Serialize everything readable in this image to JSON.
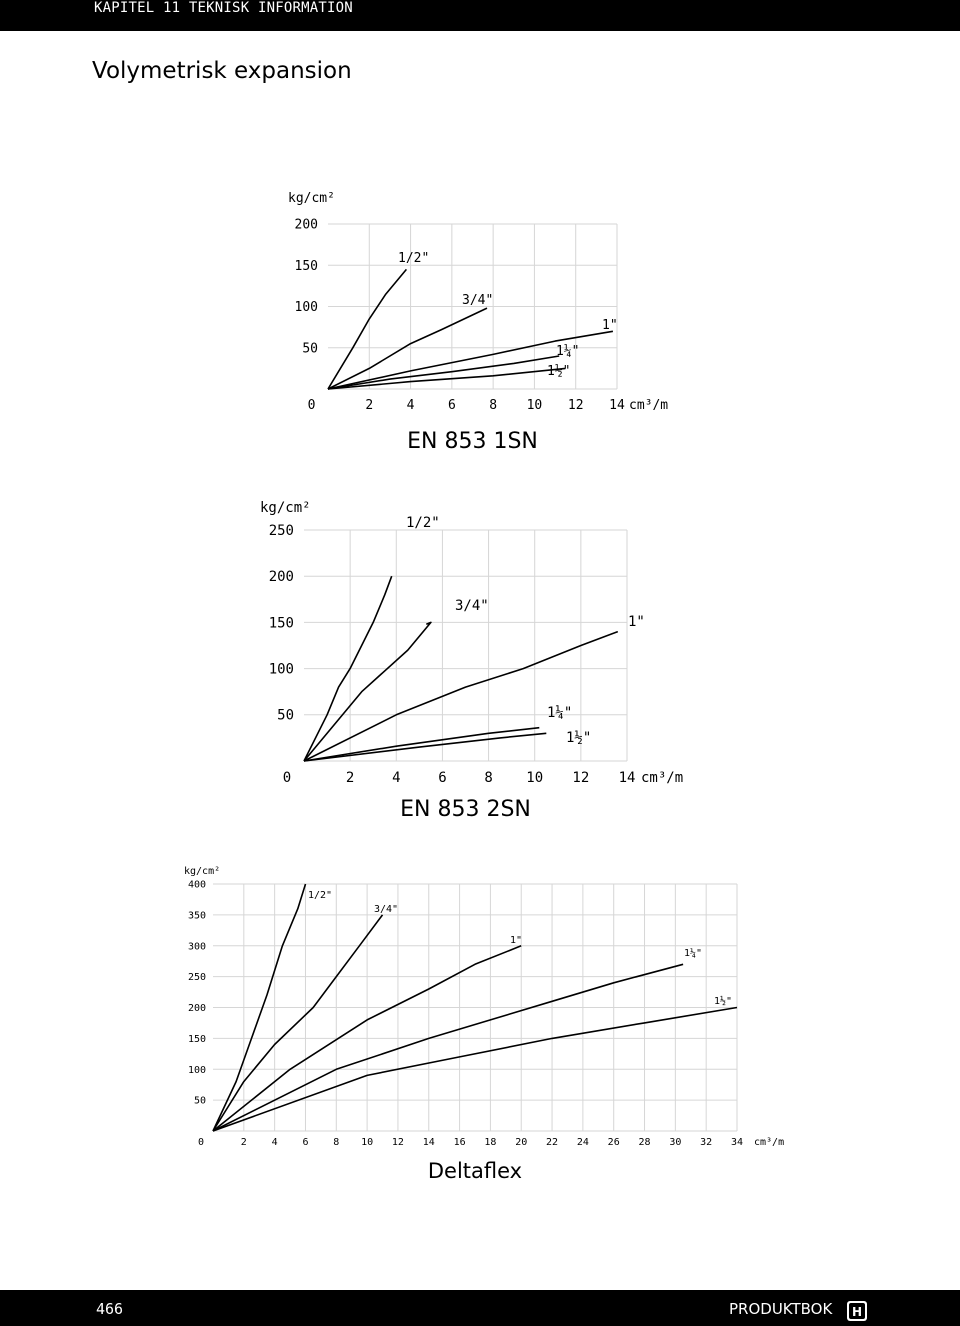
{
  "header": {
    "title": "KAPITEL 11 TEKNISK INFORMATION"
  },
  "page_title": "Volymetrisk expansion",
  "footer": {
    "page_number": "466",
    "label": "PRODUKTBOK"
  },
  "colors": {
    "header_bg": "#000000",
    "line": "#000000",
    "grid": "#d6d6d6"
  },
  "chart_data": [
    {
      "type": "line",
      "title": "EN 853 1SN",
      "ylabel": "kg/cm²",
      "xunit": "cm³/m",
      "xlim": [
        0,
        14
      ],
      "ylim": [
        0,
        200
      ],
      "xticks": [
        0,
        2,
        4,
        6,
        8,
        10,
        12,
        14
      ],
      "yticks": [
        50,
        100,
        150,
        200
      ],
      "grid": true,
      "series": [
        {
          "name": "1/2\"",
          "x": [
            0,
            1.2,
            2.0,
            2.8,
            3.8
          ],
          "y": [
            0,
            50,
            85,
            115,
            145
          ]
        },
        {
          "name": "3/4\"",
          "x": [
            0,
            2,
            4,
            5.5,
            7.7
          ],
          "y": [
            0,
            25,
            55,
            72,
            98
          ]
        },
        {
          "name": "1\"",
          "x": [
            0,
            4,
            8,
            11,
            13.8
          ],
          "y": [
            0,
            22,
            42,
            58,
            70
          ]
        },
        {
          "name": "1¼\"",
          "x": [
            0,
            3,
            6,
            9,
            11.2
          ],
          "y": [
            0,
            12,
            21,
            31,
            40
          ]
        },
        {
          "name": "1½\"",
          "x": [
            0,
            4,
            8,
            11.5
          ],
          "y": [
            0,
            9,
            16,
            25
          ]
        }
      ]
    },
    {
      "type": "line",
      "title": "EN 853 2SN",
      "ylabel": "kg/cm²",
      "xunit": "cm³/m",
      "xlim": [
        0,
        14
      ],
      "ylim": [
        0,
        250
      ],
      "xticks": [
        0,
        2,
        4,
        6,
        8,
        10,
        12,
        14
      ],
      "yticks": [
        50,
        100,
        150,
        200,
        250
      ],
      "grid": true,
      "series": [
        {
          "name": "1/2\"",
          "x": [
            0,
            1.0,
            1.5,
            2.0,
            3.0,
            3.5,
            3.8
          ],
          "y": [
            0,
            50,
            80,
            100,
            150,
            180,
            200
          ]
        },
        {
          "name": "3/4\"",
          "x": [
            0,
            2.5,
            4.5,
            5.5,
            5.3
          ],
          "y": [
            0,
            75,
            120,
            150,
            148
          ]
        },
        {
          "name": "1\"",
          "x": [
            0,
            4,
            7,
            9.5,
            12,
            13.6
          ],
          "y": [
            0,
            50,
            80,
            100,
            125,
            140
          ]
        },
        {
          "name": "1¼\"",
          "x": [
            0,
            4,
            8,
            10.2
          ],
          "y": [
            0,
            16,
            30,
            36
          ]
        },
        {
          "name": "1½\"",
          "x": [
            0,
            5,
            8.5,
            10.5
          ],
          "y": [
            0,
            15,
            25,
            30
          ]
        }
      ]
    },
    {
      "type": "line",
      "title": "Deltaflex",
      "ylabel": "kg/cm²",
      "xunit": "cm³/m",
      "xlim": [
        0,
        34
      ],
      "ylim": [
        0,
        400
      ],
      "xticks": [
        0,
        2,
        4,
        6,
        8,
        10,
        12,
        14,
        16,
        18,
        20,
        22,
        24,
        26,
        28,
        30,
        32,
        34
      ],
      "yticks": [
        50,
        100,
        150,
        200,
        250,
        300,
        350,
        400
      ],
      "grid": true,
      "series": [
        {
          "name": "1/2\"",
          "x": [
            0,
            1.5,
            2.5,
            3.5,
            4.5,
            5.5,
            6.0
          ],
          "y": [
            0,
            80,
            150,
            220,
            300,
            360,
            400
          ]
        },
        {
          "name": "3/4\"",
          "x": [
            0,
            2,
            4,
            6.5,
            8,
            9.5,
            11.0
          ],
          "y": [
            0,
            80,
            140,
            200,
            250,
            300,
            350
          ]
        },
        {
          "name": "1\"",
          "x": [
            0,
            5,
            10,
            14,
            17,
            20
          ],
          "y": [
            0,
            100,
            180,
            230,
            270,
            300
          ]
        },
        {
          "name": "1¼\"",
          "x": [
            0,
            8,
            14,
            18,
            22,
            26,
            30.5
          ],
          "y": [
            0,
            100,
            150,
            180,
            210,
            240,
            270
          ]
        },
        {
          "name": "1½\"",
          "x": [
            0,
            10,
            16,
            22,
            28,
            34
          ],
          "y": [
            0,
            90,
            120,
            150,
            175,
            200
          ]
        }
      ]
    }
  ]
}
